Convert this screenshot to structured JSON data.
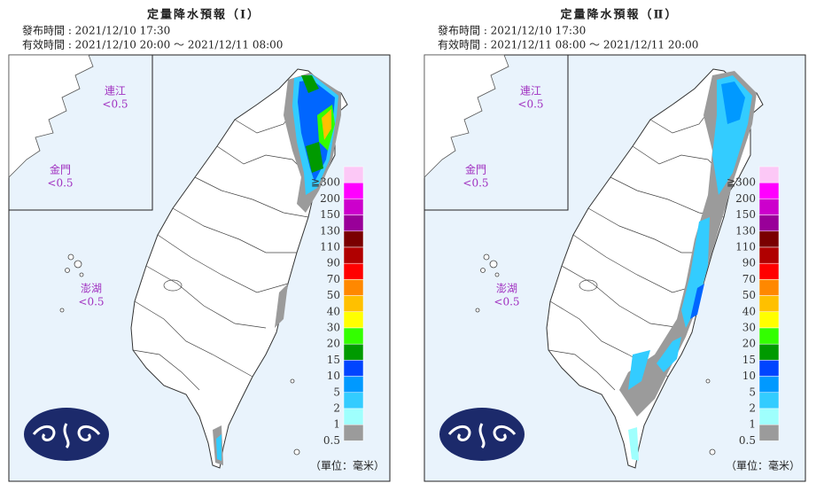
{
  "panels": [
    {
      "title": "定量降水預報（Ⅰ）",
      "issued": "發布時間 : 2021/12/10 17:30",
      "valid": "有效時間 : 2021/12/10 20:00 ～ 2021/12/11 08:00",
      "islands": [
        {
          "name": "連江",
          "value": "<0.5"
        },
        {
          "name": "金門",
          "value": "<0.5"
        },
        {
          "name": "澎湖",
          "value": "<0.5"
        }
      ],
      "unit": "（單位：毫米）"
    },
    {
      "title": "定量降水預報（Ⅱ）",
      "issued": "發布時間 : 2021/12/10 17:30",
      "valid": "有效時間 : 2021/12/11 08:00 ～ 2021/12/11 20:00",
      "islands": [
        {
          "name": "連江",
          "value": "<0.5"
        },
        {
          "name": "金門",
          "value": "<0.5"
        },
        {
          "name": "澎湖",
          "value": "<0.5"
        }
      ],
      "unit": "（單位：毫米）"
    }
  ],
  "legend": {
    "labels": [
      "≧300",
      "200",
      "150",
      "130",
      "110",
      "90",
      "70",
      "50",
      "40",
      "30",
      "20",
      "15",
      "10",
      "5",
      "2",
      "1",
      "0.5"
    ],
    "colors": [
      "#fcc8f6",
      "#ff00ff",
      "#cc00cc",
      "#990099",
      "#7a0000",
      "#b00000",
      "#ff0000",
      "#ff8800",
      "#ffc000",
      "#ffff00",
      "#33ff00",
      "#009a00",
      "#0044ff",
      "#0099ff",
      "#33ccff",
      "#9ffffd",
      "#9b9b9b"
    ]
  }
}
